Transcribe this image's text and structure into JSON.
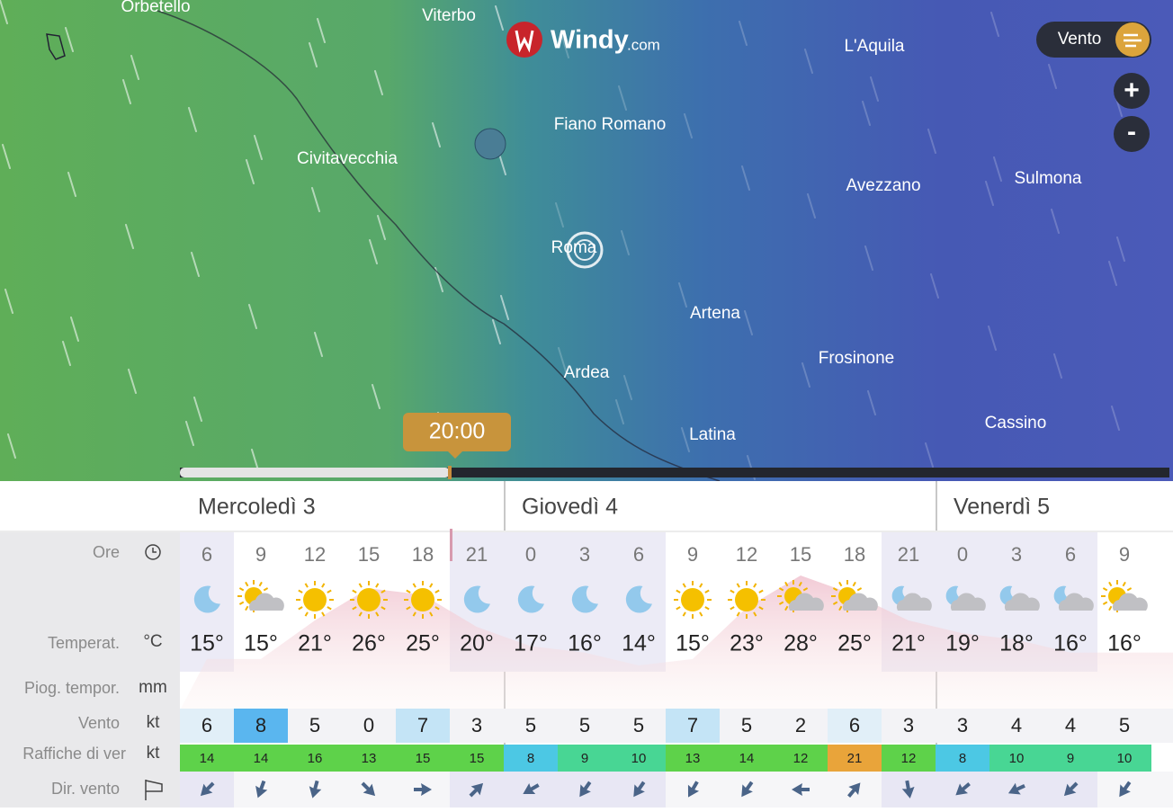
{
  "map": {
    "logo_main": "Windy",
    "logo_suffix": ".com",
    "layer": "Vento",
    "zoom_in": "+",
    "zoom_out": "-",
    "time": "20:00",
    "places": [
      "Orbetello",
      "Viterbo",
      "L'Aquila",
      "Fiano Romano",
      "Civitavecchia",
      "Avezzano",
      "Sulmona",
      "Roma",
      "Artena",
      "Frosinone",
      "Ardea",
      "Latina",
      "Cassino"
    ]
  },
  "forecast": {
    "row_labels": {
      "hours": "Ore",
      "temp": "Temperat.",
      "temp_unit": "°C",
      "rain": "Piog. tempor.",
      "rain_unit": "mm",
      "wind": "Vento",
      "wind_unit": "kt",
      "gusts": "Raffiche di ver",
      "gusts_unit": "kt",
      "dir": "Dir. vento"
    },
    "days": [
      {
        "label": "Mercoledì 3",
        "hours": [
          6,
          9,
          12,
          15,
          18,
          21
        ],
        "weather": [
          "moon",
          "sun-cloud",
          "sun",
          "sun",
          "sun",
          "moon"
        ],
        "temps": [
          "15°",
          "15°",
          "21°",
          "26°",
          "25°",
          "20°"
        ],
        "wind": [
          6,
          8,
          5,
          0,
          7,
          3
        ],
        "gusts": [
          14,
          14,
          16,
          13,
          15,
          15
        ],
        "wind_dir": [
          225,
          200,
          195,
          135,
          90,
          45
        ]
      },
      {
        "label": "Giovedì 4",
        "hours": [
          0,
          3,
          6,
          9,
          12,
          15,
          18,
          21
        ],
        "weather": [
          "moon",
          "moon",
          "moon",
          "sun",
          "sun",
          "sun-cloud",
          "sun-cloud",
          "moon-cloud"
        ],
        "temps": [
          "17°",
          "16°",
          "14°",
          "15°",
          "23°",
          "28°",
          "25°",
          "21°"
        ],
        "wind": [
          5,
          5,
          5,
          7,
          5,
          2,
          6,
          3
        ],
        "gusts": [
          8,
          9,
          10,
          13,
          14,
          12,
          21,
          12
        ],
        "wind_dir": [
          240,
          215,
          215,
          210,
          215,
          270,
          40,
          170
        ]
      },
      {
        "label": "Venerdì 5",
        "hours": [
          0,
          3,
          6,
          9
        ],
        "weather": [
          "moon-cloud",
          "moon-cloud",
          "moon-cloud",
          "sun-cloud"
        ],
        "temps": [
          "19°",
          "18°",
          "16°",
          "16°"
        ],
        "wind": [
          3,
          4,
          4,
          5
        ],
        "gusts": [
          8,
          10,
          9,
          10
        ],
        "wind_dir": [
          230,
          245,
          225,
          215
        ]
      }
    ]
  }
}
